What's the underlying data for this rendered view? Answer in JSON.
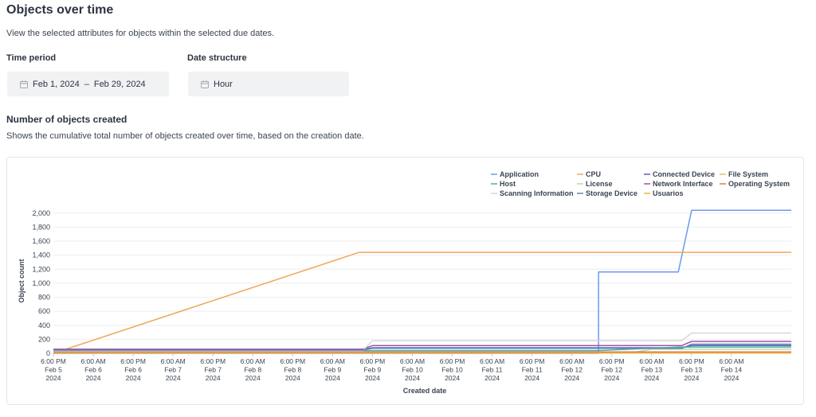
{
  "header": {
    "title": "Objects over time",
    "subtitle": "View the selected attributes for objects within the selected due dates."
  },
  "filters": {
    "time_period_label": "Time period",
    "time_period_start": "Feb 1, 2024",
    "time_period_separator": "–",
    "time_period_end": "Feb 29, 2024",
    "date_structure_label": "Date structure",
    "date_structure_value": "Hour",
    "icon": "calendar-icon"
  },
  "section": {
    "title": "Number of objects created",
    "subtitle": "Shows the cumulative total number of objects created over time, based on the creation date."
  },
  "chart_data": {
    "type": "line",
    "xlabel": "Created date",
    "ylabel": "Object count",
    "ylim": [
      0,
      2100
    ],
    "yticks": [
      0,
      200,
      400,
      600,
      800,
      1000,
      1200,
      1400,
      1600,
      1800,
      2000
    ],
    "ytick_labels": [
      "0",
      "200",
      "400",
      "600",
      "800",
      "1,000",
      "1,200",
      "1,400",
      "1,600",
      "1,800",
      "2,000"
    ],
    "xlim": [
      "2024-02-05 18:00",
      "2024-02-15 00:00"
    ],
    "xticks": [
      {
        "x": "2024-02-05 18:00",
        "lines": [
          "6:00 PM",
          "Feb 5",
          "2024"
        ]
      },
      {
        "x": "2024-02-06 06:00",
        "lines": [
          "6:00 AM",
          "Feb 6",
          "2024"
        ]
      },
      {
        "x": "2024-02-06 18:00",
        "lines": [
          "6:00 PM",
          "Feb 6",
          "2024"
        ]
      },
      {
        "x": "2024-02-07 06:00",
        "lines": [
          "6:00 AM",
          "Feb 7",
          "2024"
        ]
      },
      {
        "x": "2024-02-07 18:00",
        "lines": [
          "6:00 PM",
          "Feb 7",
          "2024"
        ]
      },
      {
        "x": "2024-02-08 06:00",
        "lines": [
          "6:00 AM",
          "Feb 8",
          "2024"
        ]
      },
      {
        "x": "2024-02-08 18:00",
        "lines": [
          "6:00 PM",
          "Feb 8",
          "2024"
        ]
      },
      {
        "x": "2024-02-09 06:00",
        "lines": [
          "6:00 AM",
          "Feb 9",
          "2024"
        ]
      },
      {
        "x": "2024-02-09 18:00",
        "lines": [
          "6:00 PM",
          "Feb 9",
          "2024"
        ]
      },
      {
        "x": "2024-02-10 06:00",
        "lines": [
          "6:00 AM",
          "Feb 10",
          "2024"
        ]
      },
      {
        "x": "2024-02-10 18:00",
        "lines": [
          "6:00 PM",
          "Feb 10",
          "2024"
        ]
      },
      {
        "x": "2024-02-11 06:00",
        "lines": [
          "6:00 AM",
          "Feb 11",
          "2024"
        ]
      },
      {
        "x": "2024-02-11 18:00",
        "lines": [
          "6:00 PM",
          "Feb 11",
          "2024"
        ]
      },
      {
        "x": "2024-02-12 06:00",
        "lines": [
          "6:00 AM",
          "Feb 12",
          "2024"
        ]
      },
      {
        "x": "2024-02-12 18:00",
        "lines": [
          "6:00 PM",
          "Feb 12",
          "2024"
        ]
      },
      {
        "x": "2024-02-13 06:00",
        "lines": [
          "6:00 AM",
          "Feb 13",
          "2024"
        ]
      },
      {
        "x": "2024-02-13 18:00",
        "lines": [
          "6:00 PM",
          "Feb 13",
          "2024"
        ]
      },
      {
        "x": "2024-02-14 06:00",
        "lines": [
          "6:00 AM",
          "Feb 14",
          "2024"
        ]
      }
    ],
    "grid": true,
    "legend_position": "top-right",
    "series": [
      {
        "name": "Application",
        "color": "#6c9be8",
        "points": [
          [
            "2024-02-05 18:00",
            0
          ],
          [
            "2024-02-12 14:00",
            0
          ],
          [
            "2024-02-12 14:00",
            1160
          ],
          [
            "2024-02-13 14:00",
            1160
          ],
          [
            "2024-02-13 18:00",
            2040
          ],
          [
            "2024-02-15 00:00",
            2040
          ]
        ]
      },
      {
        "name": "CPU",
        "color": "#f1a65b",
        "points": [
          [
            "2024-02-05 18:00",
            0
          ],
          [
            "2024-02-09 14:00",
            1440
          ],
          [
            "2024-02-15 00:00",
            1440
          ]
        ]
      },
      {
        "name": "Connected Device",
        "color": "#5b5fb8",
        "points": [
          [
            "2024-02-05 18:00",
            55
          ],
          [
            "2024-02-09 15:00",
            55
          ],
          [
            "2024-02-09 18:00",
            80
          ],
          [
            "2024-02-13 15:00",
            80
          ],
          [
            "2024-02-13 18:00",
            110
          ],
          [
            "2024-02-15 00:00",
            110
          ]
        ]
      },
      {
        "name": "File System",
        "color": "#e3c16f",
        "points": [
          [
            "2024-02-05 18:00",
            15
          ],
          [
            "2024-02-15 00:00",
            15
          ]
        ]
      },
      {
        "name": "Host",
        "color": "#4bb0a2",
        "points": [
          [
            "2024-02-05 18:00",
            40
          ],
          [
            "2024-02-12 14:00",
            40
          ],
          [
            "2024-02-13 14:00",
            90
          ],
          [
            "2024-02-15 00:00",
            90
          ]
        ]
      },
      {
        "name": "License",
        "color": "#b3dca1",
        "points": [
          [
            "2024-02-05 18:00",
            10
          ],
          [
            "2024-02-13 00:00",
            10
          ],
          [
            "2024-02-13 06:00",
            60
          ],
          [
            "2024-02-15 00:00",
            60
          ]
        ]
      },
      {
        "name": "Network Interface",
        "color": "#a052a6",
        "points": [
          [
            "2024-02-05 18:00",
            60
          ],
          [
            "2024-02-09 15:00",
            60
          ],
          [
            "2024-02-09 18:00",
            110
          ],
          [
            "2024-02-13 15:00",
            110
          ],
          [
            "2024-02-13 18:00",
            170
          ],
          [
            "2024-02-15 00:00",
            170
          ]
        ]
      },
      {
        "name": "Operating System",
        "color": "#d87a4a",
        "points": [
          [
            "2024-02-05 18:00",
            20
          ],
          [
            "2024-02-15 00:00",
            20
          ]
        ]
      },
      {
        "name": "Scanning Information",
        "color": "#d7d7d7",
        "points": [
          [
            "2024-02-05 18:00",
            35
          ],
          [
            "2024-02-09 15:00",
            35
          ],
          [
            "2024-02-09 18:00",
            180
          ],
          [
            "2024-02-13 15:00",
            180
          ],
          [
            "2024-02-13 18:00",
            290
          ],
          [
            "2024-02-15 00:00",
            290
          ]
        ]
      },
      {
        "name": "Storage Device",
        "color": "#5a88b8",
        "points": [
          [
            "2024-02-05 18:00",
            45
          ],
          [
            "2024-02-09 15:00",
            45
          ],
          [
            "2024-02-09 18:00",
            70
          ],
          [
            "2024-02-13 15:00",
            70
          ],
          [
            "2024-02-13 18:00",
            130
          ],
          [
            "2024-02-15 00:00",
            130
          ]
        ]
      },
      {
        "name": "Usuarios",
        "color": "#f0b23c",
        "points": [
          [
            "2024-02-05 18:00",
            5
          ],
          [
            "2024-02-15 00:00",
            5
          ]
        ]
      }
    ]
  }
}
